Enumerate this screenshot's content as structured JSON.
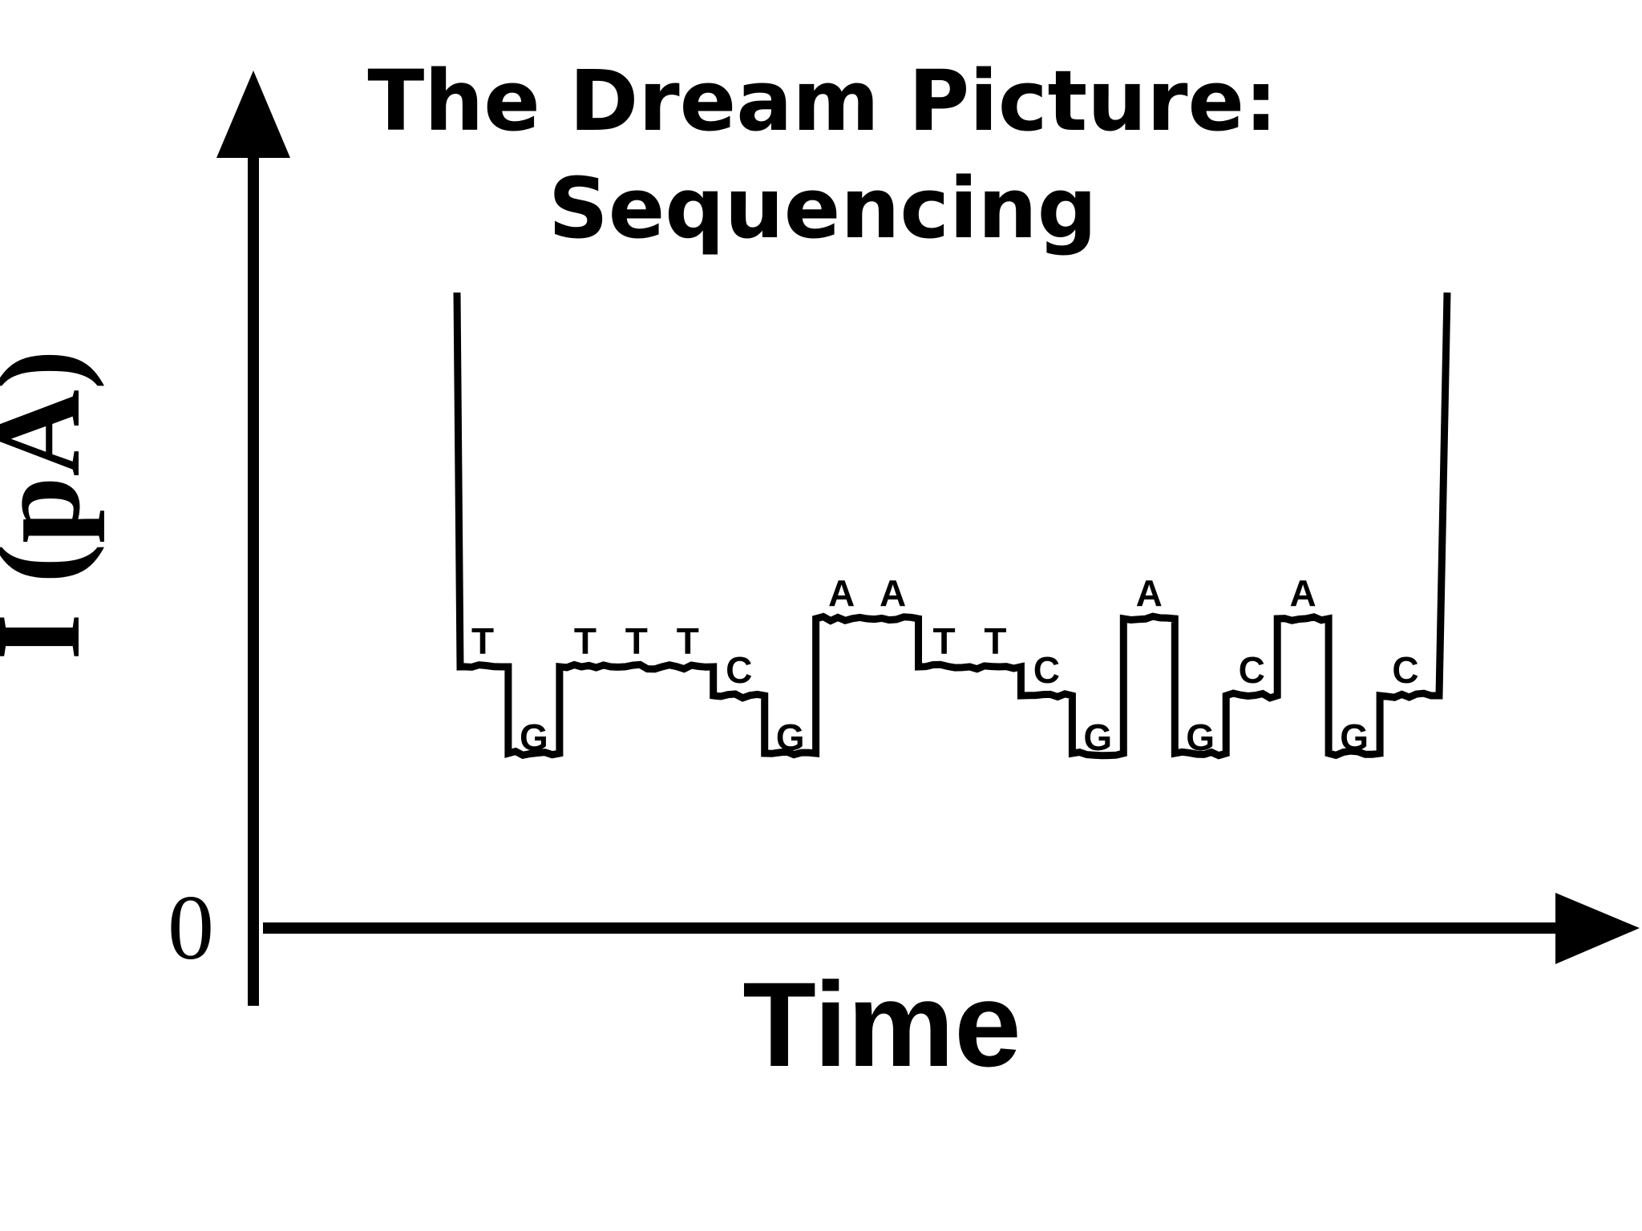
{
  "chart_data": {
    "type": "line",
    "title": [
      "The Dream Picture:",
      "Sequencing"
    ],
    "xlabel": "Time",
    "ylabel": "I (pA)",
    "y_ticks": [
      "0"
    ],
    "grid": false,
    "legend": "none",
    "line_color": "#000000",
    "series": [
      {
        "bases": [
          "T",
          "G",
          "T",
          "T",
          "T",
          "C",
          "G",
          "A",
          "A",
          "T",
          "T",
          "C",
          "G",
          "A",
          "G",
          "C",
          "A",
          "G",
          "C"
        ],
        "levels": [
          3,
          1,
          3,
          3,
          3,
          2,
          1,
          4,
          4,
          3,
          3,
          2,
          1,
          4,
          1,
          2,
          4,
          1,
          2
        ]
      }
    ]
  }
}
